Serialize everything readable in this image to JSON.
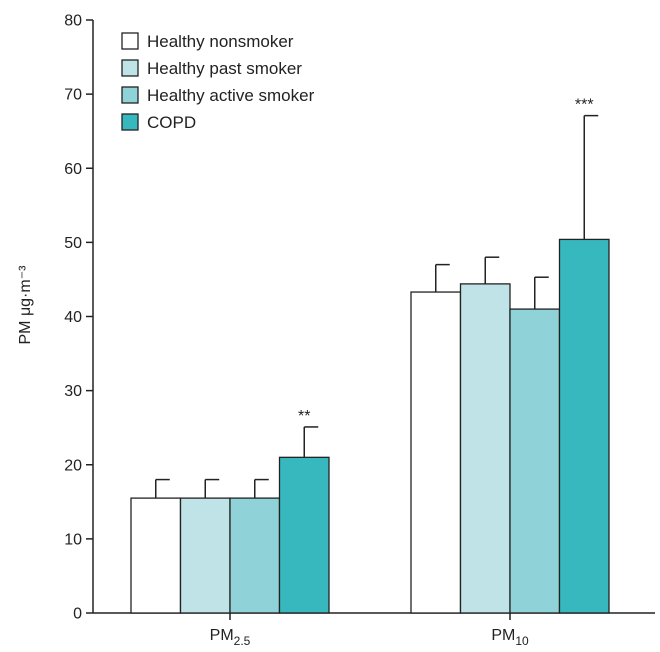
{
  "chart_data": {
    "type": "bar",
    "ylabel": "PM μg·m⁻³",
    "ylim": [
      0,
      80
    ],
    "yticks": [
      0,
      10,
      20,
      30,
      40,
      50,
      60,
      70,
      80
    ],
    "grid": false,
    "legend_position": "top-left",
    "categories": [
      {
        "main": "PM",
        "sub": "2.5"
      },
      {
        "main": "PM",
        "sub": "10"
      }
    ],
    "series": [
      {
        "name": "Healthy nonsmoker",
        "color": "#ffffff",
        "values": [
          15.5,
          43.3
        ],
        "errors": [
          2.5,
          3.7
        ]
      },
      {
        "name": "Healthy past smoker",
        "color": "#bfe3e6",
        "values": [
          15.5,
          44.4
        ],
        "errors": [
          2.5,
          3.6
        ]
      },
      {
        "name": "Healthy active smoker",
        "color": "#8fd3d8",
        "values": [
          15.5,
          41.0
        ],
        "errors": [
          2.5,
          4.3
        ]
      },
      {
        "name": "COPD",
        "color": "#37b8be",
        "values": [
          21.0,
          50.4
        ],
        "errors": [
          4.1,
          16.7
        ]
      }
    ],
    "annotations": [
      {
        "category_index": 0,
        "series_index": 3,
        "text": "**"
      },
      {
        "category_index": 1,
        "series_index": 3,
        "text": "***"
      }
    ]
  }
}
